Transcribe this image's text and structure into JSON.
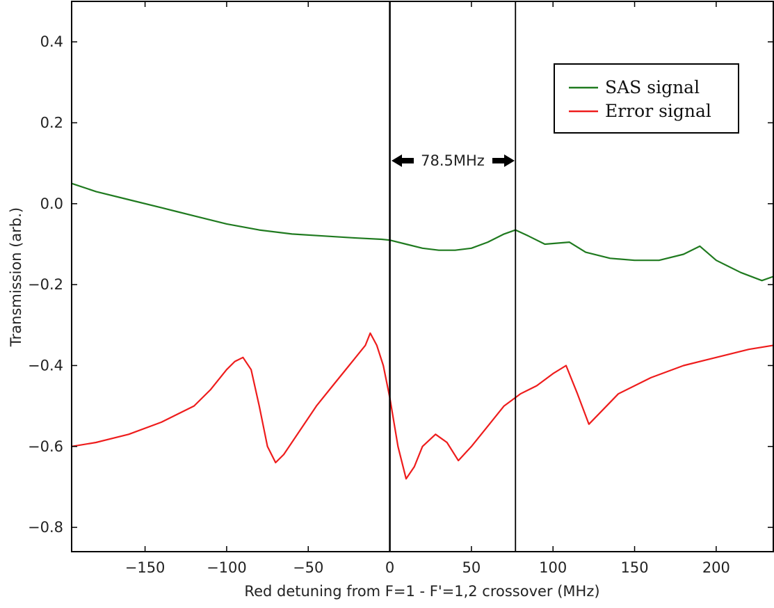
{
  "chart_data": {
    "type": "line",
    "title": "",
    "xlabel": "Red detuning from F=1 - F'=1,2 crossover (MHz)",
    "ylabel": "Transmission (arb.)",
    "xlim": [
      -195,
      235
    ],
    "ylim": [
      -0.86,
      0.5
    ],
    "xticks": [
      -150,
      -100,
      -50,
      0,
      50,
      100,
      150,
      200
    ],
    "xtick_labels": [
      "−150",
      "−100",
      "−50",
      "0",
      "50",
      "100",
      "150",
      "200"
    ],
    "yticks": [
      0.4,
      0.2,
      0.0,
      -0.2,
      -0.4,
      -0.6,
      -0.8
    ],
    "ytick_labels": [
      "0.4",
      "0.2",
      "0.0",
      "−0.2",
      "−0.4",
      "−0.6",
      "−0.8"
    ],
    "grid": false,
    "legend_position": "top-right",
    "series": [
      {
        "name": "SAS signal",
        "color": "#1f7a1f",
        "x": [
          -195,
          -180,
          -160,
          -140,
          -120,
          -100,
          -80,
          -60,
          -40,
          -20,
          -5,
          0,
          10,
          20,
          30,
          40,
          50,
          60,
          70,
          77,
          85,
          95,
          110,
          120,
          135,
          150,
          165,
          180,
          190,
          200,
          215,
          228,
          235
        ],
        "y": [
          0.05,
          0.03,
          0.01,
          -0.01,
          -0.03,
          -0.05,
          -0.065,
          -0.075,
          -0.08,
          -0.085,
          -0.088,
          -0.09,
          -0.1,
          -0.11,
          -0.115,
          -0.115,
          -0.11,
          -0.095,
          -0.075,
          -0.065,
          -0.08,
          -0.1,
          -0.095,
          -0.12,
          -0.135,
          -0.14,
          -0.14,
          -0.125,
          -0.105,
          -0.14,
          -0.17,
          -0.19,
          -0.18
        ]
      },
      {
        "name": "Error signal",
        "color": "#ee1c1c",
        "x": [
          -195,
          -180,
          -160,
          -140,
          -120,
          -110,
          -100,
          -95,
          -90,
          -85,
          -80,
          -75,
          -70,
          -65,
          -55,
          -45,
          -35,
          -25,
          -15,
          -12,
          -8,
          -4,
          0,
          5,
          10,
          15,
          20,
          28,
          35,
          42,
          50,
          60,
          70,
          80,
          90,
          100,
          108,
          115,
          122,
          128,
          140,
          160,
          180,
          200,
          220,
          235
        ],
        "y": [
          -0.6,
          -0.59,
          -0.57,
          -0.54,
          -0.5,
          -0.46,
          -0.41,
          -0.39,
          -0.38,
          -0.41,
          -0.5,
          -0.6,
          -0.64,
          -0.62,
          -0.56,
          -0.5,
          -0.45,
          -0.4,
          -0.35,
          -0.32,
          -0.35,
          -0.4,
          -0.48,
          -0.6,
          -0.68,
          -0.65,
          -0.6,
          -0.57,
          -0.59,
          -0.635,
          -0.6,
          -0.55,
          -0.5,
          -0.47,
          -0.45,
          -0.42,
          -0.4,
          -0.47,
          -0.545,
          -0.52,
          -0.47,
          -0.43,
          -0.4,
          -0.38,
          -0.36,
          -0.35
        ]
      }
    ],
    "annotations": {
      "vertical_lines_x": [
        0,
        77
      ],
      "span_label": "78.5MHz",
      "span_label_y": 0.115
    }
  }
}
